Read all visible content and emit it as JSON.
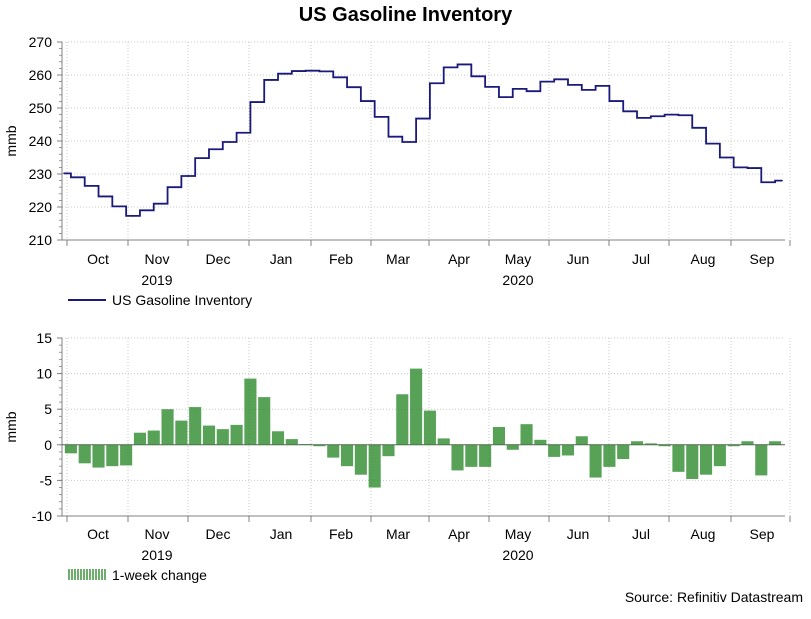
{
  "title": "US Gasoline Inventory",
  "source": "Source: Refinitiv Datastream",
  "colors": {
    "line": "#1a1a7a",
    "bar": "#2e8b2e",
    "grid": "#c8c8c8",
    "axis": "#808080"
  },
  "chart_data": [
    {
      "type": "line",
      "ylabel": "mmb",
      "ylim": [
        210,
        270
      ],
      "yticks": [
        210,
        220,
        230,
        240,
        250,
        260,
        270
      ],
      "months": [
        "Oct",
        "Nov",
        "Dec",
        "Jan",
        "Feb",
        "Mar",
        "Apr",
        "May",
        "Jun",
        "Jul",
        "Aug",
        "Sep"
      ],
      "years": [
        {
          "label": "2019",
          "month_index": 1
        },
        {
          "label": "2020",
          "month_index": 7
        }
      ],
      "legend": "US Gasoline Inventory",
      "series": [
        {
          "name": "US Gasoline Inventory",
          "values": [
            230.2,
            229.0,
            226.4,
            223.2,
            220.2,
            217.3,
            219.0,
            221.0,
            226.0,
            229.4,
            234.8,
            237.5,
            239.7,
            242.5,
            251.8,
            258.5,
            260.4,
            261.2,
            261.3,
            261.1,
            259.3,
            256.3,
            252.1,
            247.3,
            241.3,
            239.7,
            246.8,
            257.5,
            262.3,
            263.2,
            259.6,
            256.4,
            253.3,
            255.8,
            255.1,
            258.0,
            258.7,
            257.0,
            255.5,
            256.7,
            252.1,
            249.0,
            247.0,
            247.5,
            248.0,
            247.8,
            244.0,
            239.2,
            235.0,
            232.0,
            231.8,
            227.5,
            228.0
          ]
        }
      ]
    },
    {
      "type": "bar",
      "ylabel": "mmb",
      "ylim": [
        -10,
        15
      ],
      "yticks": [
        -10,
        -5,
        0,
        5,
        10,
        15
      ],
      "months": [
        "Oct",
        "Nov",
        "Dec",
        "Jan",
        "Feb",
        "Mar",
        "Apr",
        "May",
        "Jun",
        "Jul",
        "Aug",
        "Sep"
      ],
      "years": [
        {
          "label": "2019",
          "month_index": 1
        },
        {
          "label": "2020",
          "month_index": 7
        }
      ],
      "legend": "1-week change",
      "series": [
        {
          "name": "1-week change",
          "values": [
            -1.2,
            -2.6,
            -3.2,
            -3.0,
            -2.9,
            1.7,
            2.0,
            5.0,
            3.4,
            5.3,
            2.7,
            2.2,
            2.8,
            9.3,
            6.7,
            1.9,
            0.8,
            0.1,
            -0.2,
            -1.8,
            -3.0,
            -4.2,
            -6.0,
            -1.6,
            7.1,
            10.7,
            4.8,
            0.9,
            -3.6,
            -3.1,
            -3.1,
            2.5,
            -0.7,
            2.9,
            0.7,
            -1.7,
            -1.5,
            1.2,
            -4.6,
            -3.1,
            -2.0,
            0.5,
            0.2,
            -0.2,
            -3.8,
            -4.8,
            -4.2,
            -3.0,
            -0.2,
            0.5,
            -4.3,
            0.5
          ]
        }
      ]
    }
  ]
}
